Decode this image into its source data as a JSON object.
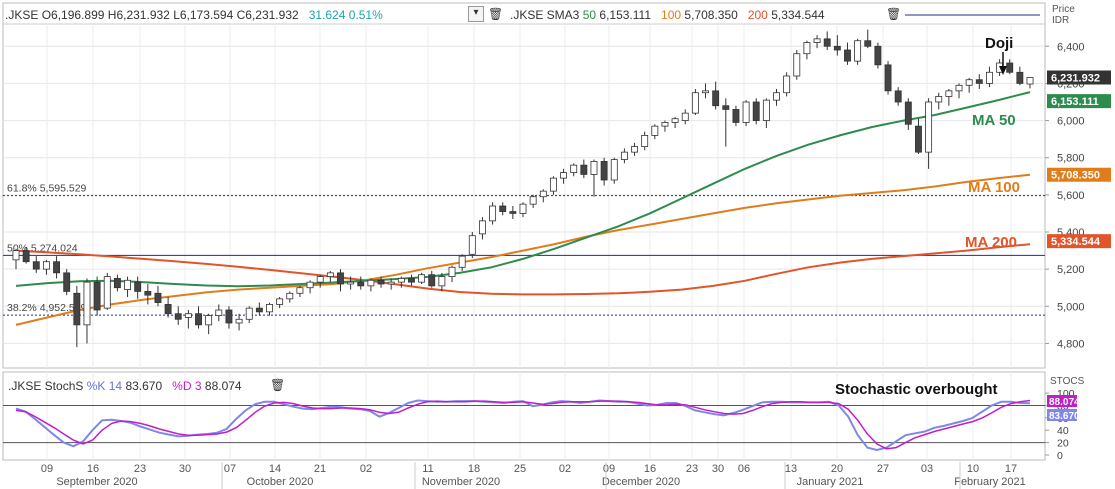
{
  "header": {
    "symbol": ".JKSE",
    "open_label": "O",
    "open": "6,196.899",
    "high_label": "H",
    "high": "6,231.932",
    "low_label": "L",
    "low": "6,173.594",
    "close_label": "C",
    "close": "6,231.932",
    "change": "31.624",
    "change_pct": "0.51%",
    "sma_label": ".JKSE SMA3",
    "sma50_period": "50",
    "sma50_value": "6,153.111",
    "sma100_period": "100",
    "sma100_value": "5,708.350",
    "sma200_period": "200",
    "sma200_value": "5,334.544",
    "price_label": "Price",
    "currency": "IDR"
  },
  "stoch_header": {
    "label": ".JKSE StochS",
    "k_label": "%K",
    "k_period": "14",
    "k_value": "83.670",
    "d_label": "%D",
    "d_period": "3",
    "d_value": "88.074",
    "axis_label": "STOCS"
  },
  "annotations": {
    "doji": "Doji",
    "ma50": "MA 50",
    "ma100": "MA 100",
    "ma200": "MA 200",
    "stoch": "Stochastic overbought",
    "fib618": "61.8%  5,595.529",
    "fib50": "50%    5,274.024",
    "fib382": "38.2%  4,952.519"
  },
  "price_badges": {
    "last": "6,231.932",
    "sma50": "6,153.111",
    "sma100": "5,708.350",
    "sma200": "5,334.544",
    "stoch_d": "88.074",
    "stoch_k": "83.670"
  },
  "colors": {
    "up": "#ffffff",
    "down": "#444444",
    "sma50": "#2e8b4e",
    "sma100": "#e07d1a",
    "sma200": "#e0552a",
    "fib": "#1f2d8a",
    "stoch_k": "#7f87e8",
    "stoch_d": "#c01ec8",
    "change": "#1aa3a3"
  },
  "x_axis": {
    "day_ticks": [
      "09",
      "16",
      "23",
      "30",
      "07",
      "14",
      "21",
      "02",
      "11",
      "18",
      "25",
      "02",
      "09",
      "16",
      "23",
      "30",
      "06",
      "13",
      "20",
      "27",
      "03",
      "10",
      "17"
    ],
    "month_ticks": [
      "September 2020",
      "October 2020",
      "November 2020",
      "December 2020",
      "January 2021",
      "February 2021"
    ]
  },
  "chart_data": [
    {
      "type": "candlestick",
      "title": ".JKSE",
      "ylabel": "Price IDR",
      "ylim": [
        4700,
        6520
      ],
      "y_ticks": [
        "4,800",
        "5,000",
        "5,200",
        "5,400",
        "5,600",
        "5,800",
        "6,000",
        "6,200",
        "6,400"
      ],
      "y_tick_values": [
        4800,
        5000,
        5200,
        5400,
        5600,
        5800,
        6000,
        6200,
        6400
      ],
      "candles": [
        [
          5250,
          5310,
          5200,
          5300
        ],
        [
          5300,
          5320,
          5230,
          5240
        ],
        [
          5240,
          5270,
          5180,
          5200
        ],
        [
          5200,
          5250,
          5170,
          5240
        ],
        [
          5240,
          5270,
          5150,
          5180
        ],
        [
          5180,
          5200,
          5060,
          5080
        ],
        [
          5070,
          5110,
          4780,
          4900
        ],
        [
          4900,
          5150,
          4800,
          5130
        ],
        [
          5130,
          5160,
          4950,
          4980
        ],
        [
          4990,
          5180,
          4980,
          5160
        ],
        [
          5150,
          5170,
          5080,
          5100
        ],
        [
          5090,
          5160,
          5050,
          5140
        ],
        [
          5130,
          5160,
          5040,
          5080
        ],
        [
          5080,
          5120,
          5010,
          5060
        ],
        [
          5070,
          5110,
          5000,
          5020
        ],
        [
          5010,
          5050,
          4940,
          4960
        ],
        [
          4960,
          5000,
          4900,
          4930
        ],
        [
          4940,
          4980,
          4880,
          4960
        ],
        [
          4960,
          5000,
          4880,
          4900
        ],
        [
          4900,
          4960,
          4850,
          4950
        ],
        [
          4950,
          5010,
          4920,
          4980
        ],
        [
          4980,
          5000,
          4880,
          4910
        ],
        [
          4910,
          4960,
          4870,
          4930
        ],
        [
          4930,
          5000,
          4910,
          4990
        ],
        [
          4990,
          5020,
          4950,
          4970
        ],
        [
          4970,
          5020,
          4950,
          5010
        ],
        [
          5010,
          5050,
          4990,
          5040
        ],
        [
          5040,
          5080,
          5020,
          5070
        ],
        [
          5070,
          5110,
          5050,
          5100
        ],
        [
          5100,
          5140,
          5070,
          5130
        ],
        [
          5130,
          5170,
          5100,
          5160
        ],
        [
          5160,
          5190,
          5130,
          5180
        ],
        [
          5180,
          5200,
          5080,
          5120
        ],
        [
          5120,
          5160,
          5090,
          5130
        ],
        [
          5130,
          5160,
          5090,
          5110
        ],
        [
          5110,
          5150,
          5080,
          5140
        ],
        [
          5140,
          5160,
          5100,
          5120
        ],
        [
          5120,
          5150,
          5090,
          5130
        ],
        [
          5130,
          5160,
          5100,
          5150
        ],
        [
          5150,
          5170,
          5110,
          5130
        ],
        [
          5130,
          5180,
          5120,
          5170
        ],
        [
          5170,
          5190,
          5100,
          5110
        ],
        [
          5110,
          5180,
          5080,
          5160
        ],
        [
          5160,
          5220,
          5130,
          5210
        ],
        [
          5210,
          5280,
          5190,
          5270
        ],
        [
          5280,
          5400,
          5260,
          5380
        ],
        [
          5390,
          5480,
          5360,
          5460
        ],
        [
          5460,
          5560,
          5440,
          5540
        ],
        [
          5540,
          5560,
          5490,
          5510
        ],
        [
          5510,
          5540,
          5470,
          5500
        ],
        [
          5500,
          5560,
          5480,
          5550
        ],
        [
          5550,
          5600,
          5530,
          5590
        ],
        [
          5590,
          5630,
          5560,
          5620
        ],
        [
          5620,
          5700,
          5600,
          5690
        ],
        [
          5690,
          5740,
          5660,
          5720
        ],
        [
          5720,
          5770,
          5700,
          5760
        ],
        [
          5760,
          5790,
          5690,
          5710
        ],
        [
          5710,
          5790,
          5590,
          5780
        ],
        [
          5780,
          5800,
          5650,
          5680
        ],
        [
          5680,
          5800,
          5660,
          5790
        ],
        [
          5790,
          5850,
          5770,
          5830
        ],
        [
          5830,
          5880,
          5810,
          5860
        ],
        [
          5860,
          5940,
          5840,
          5920
        ],
        [
          5920,
          5980,
          5900,
          5970
        ],
        [
          5970,
          6000,
          5940,
          5990
        ],
        [
          5990,
          6020,
          5960,
          6010
        ],
        [
          6000,
          6060,
          5980,
          6040
        ],
        [
          6040,
          6170,
          6030,
          6150
        ],
        [
          6150,
          6200,
          6120,
          6160
        ],
        [
          6160,
          6210,
          6060,
          6080
        ],
        [
          6080,
          6120,
          5860,
          6060
        ],
        [
          6060,
          6080,
          5970,
          5990
        ],
        [
          5990,
          6110,
          5970,
          6100
        ],
        [
          6100,
          6120,
          5980,
          6000
        ],
        [
          6000,
          6120,
          5960,
          6110
        ],
        [
          6110,
          6170,
          6080,
          6150
        ],
        [
          6150,
          6260,
          6130,
          6240
        ],
        [
          6240,
          6380,
          6220,
          6360
        ],
        [
          6360,
          6430,
          6330,
          6420
        ],
        [
          6420,
          6460,
          6390,
          6440
        ],
        [
          6440,
          6480,
          6380,
          6400
        ],
        [
          6400,
          6460,
          6350,
          6380
        ],
        [
          6380,
          6420,
          6300,
          6320
        ],
        [
          6320,
          6440,
          6300,
          6430
        ],
        [
          6430,
          6490,
          6390,
          6400
        ],
        [
          6400,
          6420,
          6280,
          6300
        ],
        [
          6300,
          6320,
          6140,
          6160
        ],
        [
          6160,
          6180,
          6080,
          6100
        ],
        [
          6100,
          6120,
          5950,
          5980
        ],
        [
          5970,
          6010,
          5820,
          5830
        ],
        [
          5830,
          6120,
          5740,
          6100
        ],
        [
          6100,
          6150,
          6060,
          6130
        ],
        [
          6130,
          6170,
          6080,
          6160
        ],
        [
          6160,
          6200,
          6120,
          6190
        ],
        [
          6190,
          6230,
          6150,
          6220
        ],
        [
          6220,
          6250,
          6170,
          6200
        ],
        [
          6200,
          6290,
          6180,
          6260
        ],
        [
          6260,
          6330,
          6240,
          6310
        ],
        [
          6310,
          6330,
          6250,
          6260
        ],
        [
          6260,
          6290,
          6190,
          6200
        ],
        [
          6196.899,
          6231.932,
          6173.594,
          6231.932
        ]
      ],
      "sma50": [
        5110,
        5125,
        5135,
        5138,
        5130,
        5120,
        5112,
        5108,
        5112,
        5120,
        5128,
        5137,
        5147,
        5158,
        5180,
        5210,
        5255,
        5310,
        5370,
        5430,
        5500,
        5580,
        5660,
        5740,
        5810,
        5870,
        5920,
        5965,
        6000,
        6030,
        6070,
        6110,
        6153.111
      ],
      "sma100": [
        4900,
        4940,
        4980,
        5010,
        5035,
        5055,
        5075,
        5090,
        5100,
        5110,
        5120,
        5140,
        5170,
        5205,
        5235,
        5265,
        5300,
        5335,
        5375,
        5410,
        5440,
        5470,
        5500,
        5530,
        5555,
        5575,
        5595,
        5610,
        5625,
        5645,
        5670,
        5690,
        5708.35
      ],
      "sma200": [
        5300,
        5290,
        5280,
        5268,
        5255,
        5242,
        5228,
        5213,
        5196,
        5178,
        5160,
        5140,
        5118,
        5095,
        5077,
        5068,
        5064,
        5064,
        5066,
        5070,
        5078,
        5090,
        5110,
        5137,
        5175,
        5210,
        5235,
        5255,
        5270,
        5285,
        5300,
        5318,
        5334.544
      ],
      "fibonacci": [
        {
          "level": "61.8%",
          "value": 5595.529
        },
        {
          "level": "50%",
          "value": 5274.024
        },
        {
          "level": "38.2%",
          "value": 4952.519
        }
      ]
    },
    {
      "type": "line",
      "title": ".JKSE StochS",
      "ylim": [
        0,
        105
      ],
      "y_ticks": [
        "0",
        "20",
        "40",
        "60",
        "80",
        "100"
      ],
      "y_tick_values": [
        0,
        20,
        40,
        60,
        80,
        100
      ],
      "series": [
        {
          "name": "%K",
          "values": [
            75,
            70,
            58,
            45,
            32,
            20,
            14,
            22,
            40,
            56,
            57,
            55,
            52,
            46,
            41,
            36,
            33,
            30,
            31,
            33,
            34,
            36,
            42,
            58,
            72,
            82,
            86,
            86,
            82,
            78,
            75,
            74,
            76,
            78,
            77,
            75,
            74,
            71,
            62,
            68,
            76,
            84,
            88,
            87,
            86,
            86,
            87,
            87,
            87,
            86,
            85,
            84,
            86,
            87,
            79,
            81,
            85,
            87,
            86,
            84,
            86,
            88,
            87,
            86,
            86,
            83,
            80,
            81,
            84,
            84,
            79,
            72,
            69,
            66,
            64,
            68,
            73,
            79,
            85,
            86,
            86,
            85,
            85,
            85,
            85,
            86,
            80,
            62,
            32,
            12,
            8,
            12,
            22,
            32,
            35,
            38,
            44,
            47,
            51,
            55,
            60,
            70,
            80,
            86,
            86,
            84,
            83.67
          ]
        },
        {
          "name": "%D",
          "values": [
            72,
            70,
            62,
            53,
            44,
            34,
            24,
            18,
            24,
            40,
            51,
            55,
            54,
            51,
            47,
            42,
            38,
            34,
            32,
            32,
            33,
            34,
            37,
            44,
            56,
            69,
            79,
            84,
            85,
            83,
            79,
            76,
            75,
            75,
            76,
            76,
            75,
            73,
            69,
            67,
            69,
            76,
            82,
            86,
            87,
            86,
            86,
            86,
            87,
            87,
            86,
            85,
            85,
            86,
            84,
            82,
            83,
            85,
            86,
            86,
            86,
            87,
            87,
            87,
            86,
            85,
            83,
            81,
            81,
            82,
            81,
            77,
            73,
            70,
            67,
            66,
            67,
            72,
            78,
            83,
            85,
            86,
            86,
            85,
            85,
            85,
            83,
            74,
            56,
            34,
            18,
            10,
            12,
            20,
            28,
            33,
            38,
            42,
            46,
            50,
            54,
            60,
            68,
            77,
            83,
            86,
            88.074
          ]
        }
      ]
    }
  ]
}
